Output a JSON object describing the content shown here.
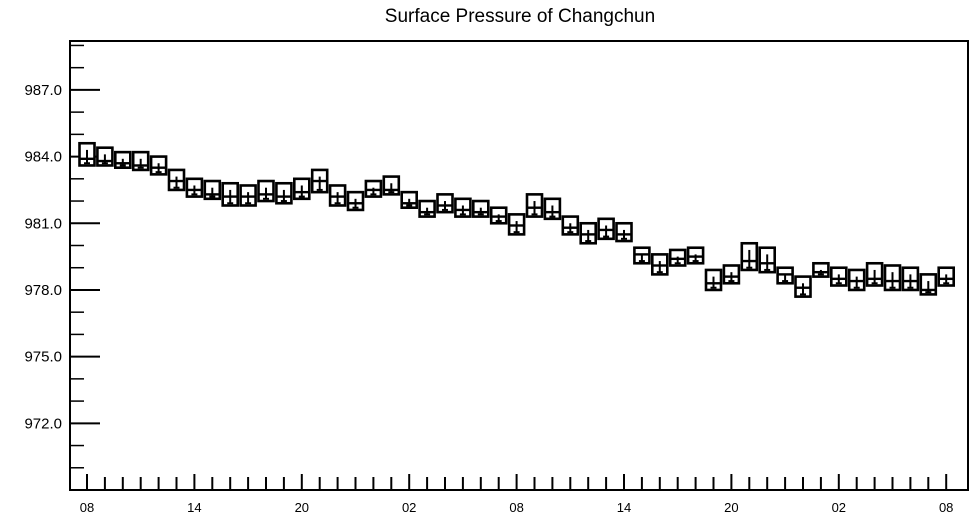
{
  "chart_data": {
    "type": "boxplot",
    "title": "Surface Pressure of Changchun",
    "xlabel": "",
    "ylabel": "",
    "ylim": [
      969.0,
      989.2
    ],
    "yticks": [
      "987.0",
      "984.0",
      "981.0",
      "978.0",
      "975.0",
      "972.0"
    ],
    "xticks": [
      "08",
      "14",
      "20",
      "02",
      "08",
      "14",
      "20",
      "02",
      "08"
    ],
    "x_interval_hours": 1,
    "series": [
      {
        "box_low": [
          983.6,
          983.6,
          983.5,
          983.4,
          983.2,
          982.5,
          982.2,
          982.1,
          981.8,
          981.8,
          982.0,
          981.9,
          982.1,
          982.4,
          981.8,
          981.6,
          982.2,
          982.3,
          981.7,
          981.3,
          981.5,
          981.3,
          981.3,
          981.0,
          980.5,
          981.3,
          981.2,
          980.5,
          980.1,
          980.3,
          980.2,
          979.2,
          978.7,
          979.1,
          979.2,
          978.0,
          978.3,
          978.9,
          978.8,
          978.3,
          977.7,
          978.6,
          978.2,
          978.0,
          978.2,
          978.0,
          978.0,
          977.8,
          978.2
        ],
        "box_high": [
          984.6,
          984.4,
          984.2,
          984.2,
          984.0,
          983.4,
          983.0,
          982.9,
          982.8,
          982.7,
          982.9,
          982.8,
          983.0,
          983.4,
          982.7,
          982.4,
          982.9,
          983.1,
          982.4,
          982.0,
          982.3,
          982.1,
          982.0,
          981.7,
          981.4,
          982.3,
          982.1,
          981.3,
          981.0,
          981.2,
          981.0,
          979.9,
          979.6,
          979.8,
          979.9,
          978.9,
          979.1,
          980.1,
          979.9,
          979.0,
          978.6,
          979.2,
          979.0,
          978.9,
          979.2,
          979.1,
          979.0,
          978.7,
          979.0
        ],
        "whisker_low": [
          983.7,
          983.7,
          983.6,
          983.5,
          983.3,
          982.6,
          982.3,
          982.2,
          981.9,
          981.9,
          982.1,
          982.0,
          982.2,
          982.5,
          981.9,
          981.7,
          982.3,
          982.4,
          981.8,
          981.4,
          981.6,
          981.4,
          981.4,
          981.1,
          980.6,
          981.4,
          981.3,
          980.6,
          980.2,
          980.4,
          980.3,
          979.3,
          978.8,
          979.2,
          979.3,
          978.1,
          978.4,
          979.0,
          978.9,
          978.4,
          977.8,
          978.7,
          978.3,
          978.1,
          978.3,
          978.1,
          978.1,
          977.9,
          978.3
        ],
        "whisker_high": [
          984.3,
          984.1,
          983.9,
          983.9,
          983.7,
          983.1,
          982.7,
          982.6,
          982.5,
          982.4,
          982.6,
          982.5,
          982.7,
          983.1,
          982.4,
          982.1,
          982.6,
          982.8,
          982.1,
          981.7,
          982.0,
          981.8,
          981.7,
          981.4,
          981.1,
          982.0,
          981.8,
          981.0,
          980.7,
          980.9,
          980.7,
          979.6,
          979.3,
          979.5,
          979.6,
          978.6,
          978.8,
          979.8,
          979.6,
          978.7,
          978.3,
          978.9,
          978.7,
          978.6,
          978.9,
          978.8,
          978.7,
          978.4,
          978.7
        ],
        "median": [
          983.9,
          983.8,
          983.7,
          983.6,
          983.5,
          982.9,
          982.5,
          982.3,
          982.2,
          982.2,
          982.3,
          982.2,
          982.4,
          982.9,
          982.2,
          981.9,
          982.5,
          982.5,
          981.9,
          981.5,
          981.8,
          981.6,
          981.5,
          981.3,
          980.9,
          981.7,
          981.5,
          980.8,
          980.5,
          980.7,
          980.5,
          979.6,
          979.1,
          979.4,
          979.5,
          978.3,
          978.6,
          979.3,
          979.2,
          978.7,
          978.1,
          978.8,
          978.5,
          978.4,
          978.5,
          978.4,
          978.4,
          978.0,
          978.5
        ]
      }
    ]
  }
}
